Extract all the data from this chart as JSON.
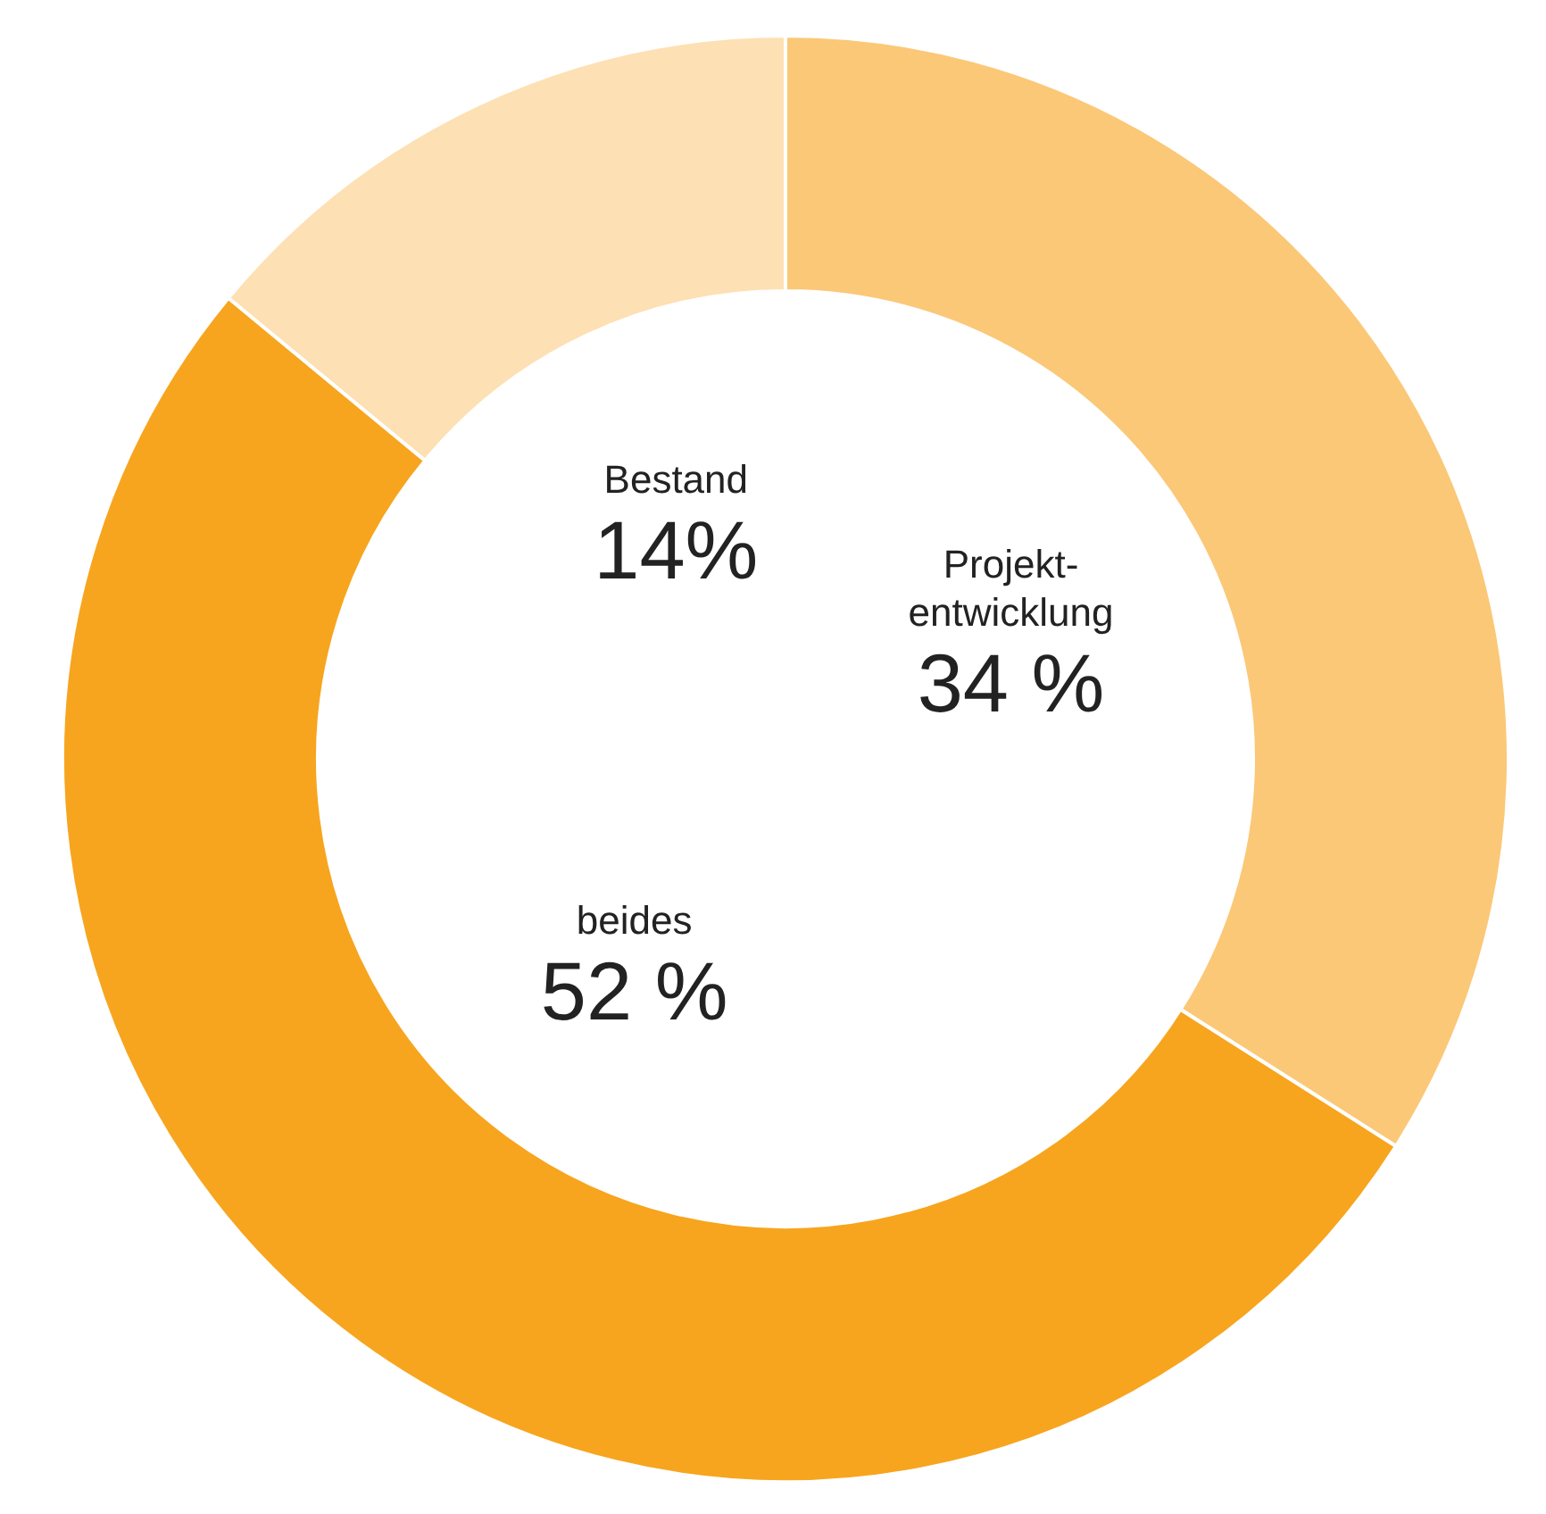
{
  "chart_data": {
    "type": "donut",
    "categories": [
      "Projekt-\nentwicklung",
      "beides",
      "Bestand"
    ],
    "values": [
      34,
      52,
      14
    ],
    "value_labels": [
      "34 %",
      "52 %",
      "14%"
    ],
    "colors": [
      "#fbc878",
      "#f7a51e",
      "#fde0b3"
    ],
    "legend": false
  }
}
